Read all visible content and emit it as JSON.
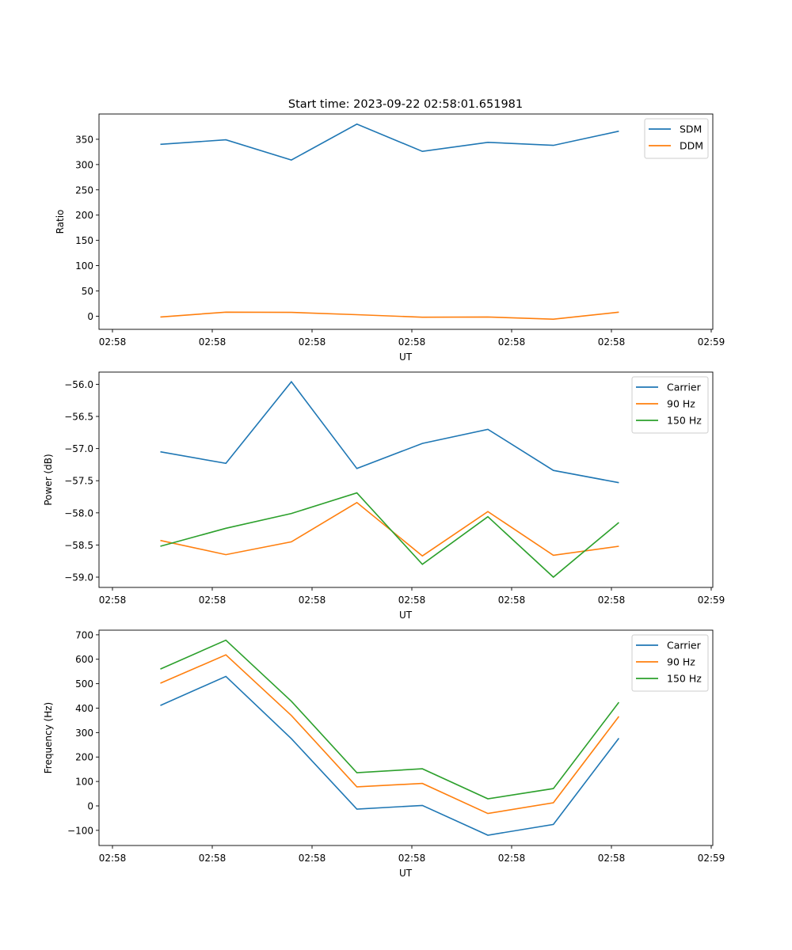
{
  "chart_data": [
    {
      "type": "line",
      "title": "Start time: 2023-09-22 02:58:01.651981",
      "xlabel": "UT",
      "ylabel": "Ratio",
      "x_tick_labels": [
        "02:58",
        "02:58",
        "02:58",
        "02:58",
        "02:58",
        "02:58",
        "02:59"
      ],
      "y_ticks": [
        0,
        50,
        100,
        150,
        200,
        250,
        300,
        350
      ],
      "y_tick_labels": [
        "0",
        "50",
        "100",
        "150",
        "200",
        "250",
        "300",
        "350"
      ],
      "ylim": [
        -26,
        400
      ],
      "grid": false,
      "legend": "top-right",
      "x": [
        1,
        2,
        3,
        4,
        5,
        6,
        7,
        8
      ],
      "series": [
        {
          "name": "SDM",
          "color": "#1f77b4",
          "values": [
            340,
            349,
            309,
            380,
            326,
            344,
            338,
            366
          ]
        },
        {
          "name": "DDM",
          "color": "#ff7f0e",
          "values": [
            -1.5,
            8,
            7.5,
            3,
            -2,
            -1.5,
            -6,
            8
          ]
        }
      ]
    },
    {
      "type": "line",
      "title": "",
      "xlabel": "UT",
      "ylabel": "Power (dB)",
      "x_tick_labels": [
        "02:58",
        "02:58",
        "02:58",
        "02:58",
        "02:58",
        "02:58",
        "02:59"
      ],
      "y_ticks": [
        -59.0,
        -58.5,
        -58.0,
        -57.5,
        -57.0,
        -56.5,
        -56.0
      ],
      "y_tick_labels": [
        "−59.0",
        "−58.5",
        "−58.0",
        "−57.5",
        "−57.0",
        "−56.5",
        "−56.0"
      ],
      "ylim": [
        -59.16,
        -55.81
      ],
      "grid": false,
      "legend": "top-right",
      "x": [
        1,
        2,
        3,
        4,
        5,
        6,
        7,
        8
      ],
      "series": [
        {
          "name": "Carrier",
          "color": "#1f77b4",
          "values": [
            -57.05,
            -57.23,
            -55.96,
            -57.31,
            -56.92,
            -56.7,
            -57.34,
            -57.53
          ]
        },
        {
          "name": "90 Hz",
          "color": "#ff7f0e",
          "values": [
            -58.43,
            -58.65,
            -58.45,
            -57.84,
            -58.67,
            -57.98,
            -58.66,
            -58.52
          ]
        },
        {
          "name": "150 Hz",
          "color": "#2ca02c",
          "values": [
            -58.52,
            -58.24,
            -58.01,
            -57.69,
            -58.8,
            -58.06,
            -59.0,
            -58.15
          ]
        }
      ]
    },
    {
      "type": "line",
      "title": "",
      "xlabel": "UT",
      "ylabel": "Frequency (Hz)",
      "x_tick_labels": [
        "02:58",
        "02:58",
        "02:58",
        "02:58",
        "02:58",
        "02:58",
        "02:59"
      ],
      "y_ticks": [
        -100,
        0,
        100,
        200,
        300,
        400,
        500,
        600,
        700
      ],
      "y_tick_labels": [
        "−100",
        "0",
        "100",
        "200",
        "300",
        "400",
        "500",
        "600",
        "700"
      ],
      "ylim": [
        -162,
        719
      ],
      "grid": false,
      "legend": "top-right",
      "x": [
        1,
        2,
        3,
        4,
        5,
        6,
        7,
        8
      ],
      "series": [
        {
          "name": "Carrier",
          "color": "#1f77b4",
          "values": [
            411,
            530,
            275,
            -13,
            2,
            -120,
            -76,
            277
          ]
        },
        {
          "name": "90 Hz",
          "color": "#ff7f0e",
          "values": [
            502,
            618,
            370,
            78,
            92,
            -31,
            13,
            366
          ]
        },
        {
          "name": "150 Hz",
          "color": "#2ca02c",
          "values": [
            560,
            678,
            428,
            136,
            152,
            29,
            71,
            424
          ]
        }
      ]
    }
  ]
}
